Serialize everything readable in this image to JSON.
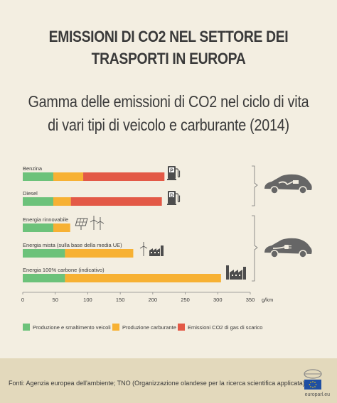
{
  "title_lines": [
    "EMISSIONI DI CO2 NEL SETTORE DEI",
    "TRASPORTI IN EUROPA"
  ],
  "subtitle_lines": [
    "Gamma delle emissioni di CO2 nel ciclo di vita",
    "di vari tipi di veicolo e carburante (2014)"
  ],
  "chart_data": {
    "type": "bar",
    "orientation": "horizontal",
    "stacked": true,
    "categories": [
      "Benzina",
      "Diesel",
      "Energia rinnovabile",
      "Energia mista (sulla base della media UE)",
      "Energia 100% carbone (indicativo)"
    ],
    "series": [
      {
        "name": "Produzione e smaltimento veicoli",
        "color": "#6cc27a",
        "values": [
          47,
          47,
          47,
          65,
          65
        ]
      },
      {
        "name": "Produzione carburante",
        "color": "#f7b133",
        "values": [
          46,
          27,
          26,
          105,
          240
        ]
      },
      {
        "name": "Emissioni CO2 di gas di scarico",
        "color": "#e35946",
        "values": [
          125,
          140,
          0,
          0,
          0
        ]
      }
    ],
    "x_ticks": [
      0,
      50,
      100,
      150,
      200,
      250,
      300,
      350
    ],
    "x_unit": "g/km",
    "xlim": [
      0,
      350
    ],
    "grid": false,
    "legend_position": "bottom"
  },
  "icons": {
    "benzina": "fuel-pump-p-icon",
    "diesel": "fuel-pump-d-icon",
    "rinnovabile": "solar-wind-icon",
    "mista": "wind-factory-icon",
    "carbone": "factory-icon",
    "conventional_car": "fuel-car-icon",
    "electric_car": "electric-car-icon"
  },
  "footer": {
    "source": "Fonti: Agenzia europea dell'ambiente; TNO (Organizzazione olandese per la ricerca scientifica applicata)",
    "brand": "europarl.eu"
  },
  "colors": {
    "background": "#f3eee1",
    "footer": "#e3d9bc",
    "text": "#3a3a3a"
  }
}
